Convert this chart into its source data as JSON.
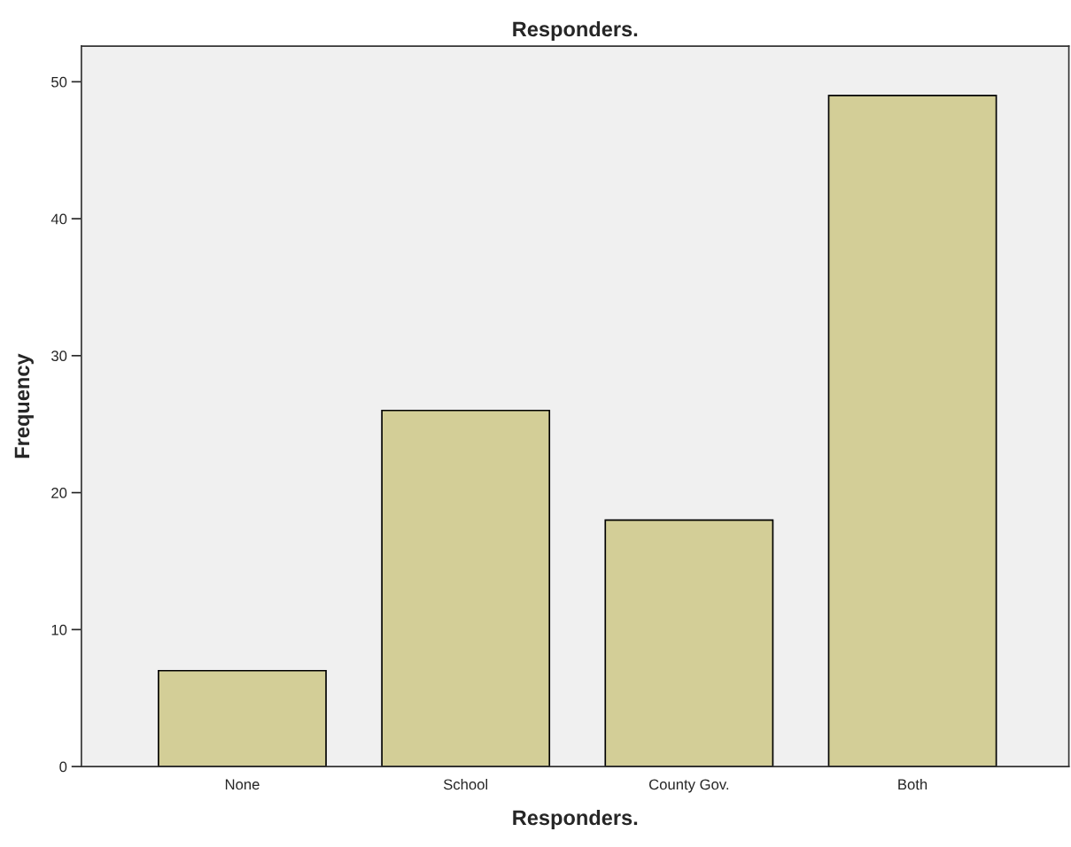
{
  "chart_data": {
    "type": "bar",
    "title": "Responders.",
    "xlabel": "Responders.",
    "ylabel": "Frequency",
    "categories": [
      "None",
      "School",
      "County Gov.",
      "Both"
    ],
    "values": [
      7,
      26,
      18,
      49
    ],
    "color": "#d3ce97",
    "ylim": [
      0,
      52.6
    ],
    "yticks": [
      0,
      10,
      20,
      30,
      40,
      50
    ],
    "grid": false,
    "legend": false
  }
}
